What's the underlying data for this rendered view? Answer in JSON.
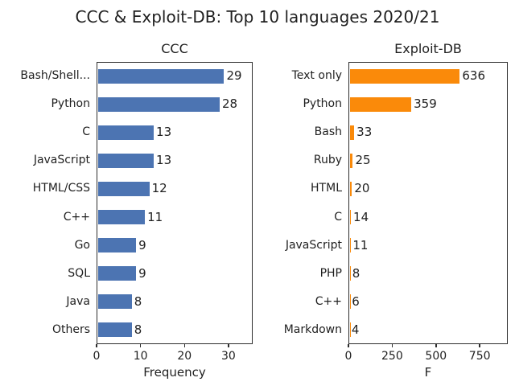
{
  "title": "CCC & Exploit-DB: Top 10 languages 2020/21",
  "colors": {
    "ccc_bar": "#4c74b2",
    "exploitdb_bar": "#fa8a0a",
    "text": "#1f1f1f",
    "axis": "#2e2e2e",
    "background": "#ffffff"
  },
  "chart_data": [
    {
      "type": "bar",
      "orientation": "horizontal",
      "title": "CCC",
      "categories": [
        "Bash/Shell...",
        "Python",
        "C",
        "JavaScript",
        "HTML/CSS",
        "C++",
        "Go",
        "SQL",
        "Java",
        "Others"
      ],
      "values": [
        29,
        28,
        13,
        13,
        12,
        11,
        9,
        9,
        8,
        8
      ],
      "xlabel": "Frequency",
      "xticks": [
        0,
        10,
        20,
        30
      ],
      "xlim": [
        0,
        35.5
      ],
      "color": "#4c74b2",
      "grid": false,
      "legend": null
    },
    {
      "type": "bar",
      "orientation": "horizontal",
      "title": "Exploit-DB",
      "categories": [
        "Text only",
        "Python",
        "Bash",
        "Ruby",
        "HTML",
        "C",
        "JavaScript",
        "PHP",
        "C++",
        "Markdown"
      ],
      "values": [
        636,
        359,
        33,
        25,
        20,
        14,
        11,
        8,
        6,
        4
      ],
      "xlabel": "F",
      "xticks": [
        0,
        250,
        500,
        750
      ],
      "xlim": [
        0,
        910
      ],
      "color": "#fa8a0a",
      "grid": false,
      "legend": null
    }
  ]
}
